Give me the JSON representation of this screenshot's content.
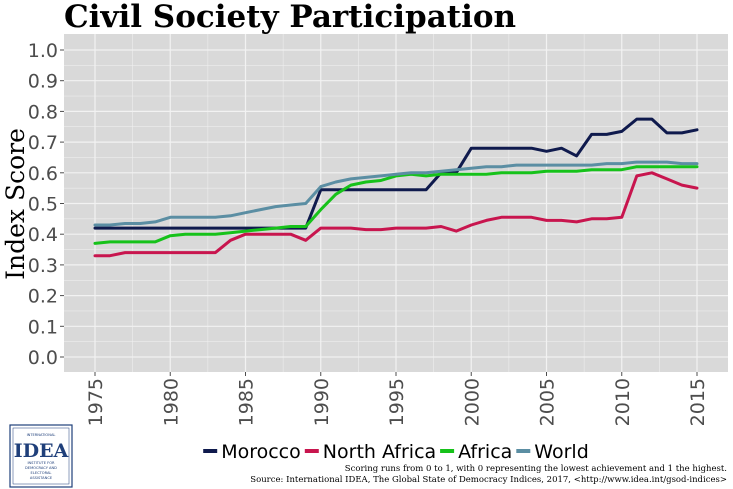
{
  "chart_data": {
    "type": "line",
    "title": "Civil Society Participation",
    "xlabel": "",
    "ylabel": "Index Score",
    "xlim": [
      1975,
      2015
    ],
    "ylim": [
      0.0,
      1.0
    ],
    "x_ticks": [
      "1975",
      "1980",
      "1985",
      "1990",
      "1995",
      "2000",
      "2005",
      "2010",
      "2015"
    ],
    "y_ticks": [
      "0.0",
      "0.1",
      "0.2",
      "0.3",
      "0.4",
      "0.5",
      "0.6",
      "0.7",
      "0.8",
      "0.9",
      "1.0"
    ],
    "grid": true,
    "legend_position": "bottom",
    "x": [
      1975,
      1976,
      1977,
      1978,
      1979,
      1980,
      1981,
      1982,
      1983,
      1984,
      1985,
      1986,
      1987,
      1988,
      1989,
      1990,
      1991,
      1992,
      1993,
      1994,
      1995,
      1996,
      1997,
      1998,
      1999,
      2000,
      2001,
      2002,
      2003,
      2004,
      2005,
      2006,
      2007,
      2008,
      2009,
      2010,
      2011,
      2012,
      2013,
      2014,
      2015
    ],
    "series": [
      {
        "name": "Morocco",
        "color": "#0f1a4d",
        "values": [
          0.42,
          0.42,
          0.42,
          0.42,
          0.42,
          0.42,
          0.42,
          0.42,
          0.42,
          0.42,
          0.42,
          0.42,
          0.42,
          0.42,
          0.42,
          0.545,
          0.545,
          0.545,
          0.545,
          0.545,
          0.545,
          0.545,
          0.545,
          0.6,
          0.6,
          0.68,
          0.68,
          0.68,
          0.68,
          0.68,
          0.67,
          0.68,
          0.655,
          0.725,
          0.725,
          0.735,
          0.775,
          0.775,
          0.73,
          0.73,
          0.74
        ]
      },
      {
        "name": "North Africa",
        "color": "#c8154e",
        "values": [
          0.33,
          0.33,
          0.34,
          0.34,
          0.34,
          0.34,
          0.34,
          0.34,
          0.34,
          0.38,
          0.4,
          0.4,
          0.4,
          0.4,
          0.38,
          0.42,
          0.42,
          0.42,
          0.415,
          0.415,
          0.42,
          0.42,
          0.42,
          0.425,
          0.41,
          0.43,
          0.445,
          0.455,
          0.455,
          0.455,
          0.445,
          0.445,
          0.44,
          0.45,
          0.45,
          0.455,
          0.59,
          0.6,
          0.58,
          0.56,
          0.55
        ]
      },
      {
        "name": "Africa",
        "color": "#16c21a",
        "values": [
          0.37,
          0.375,
          0.375,
          0.375,
          0.375,
          0.395,
          0.4,
          0.4,
          0.4,
          0.405,
          0.41,
          0.415,
          0.42,
          0.425,
          0.425,
          0.48,
          0.53,
          0.56,
          0.57,
          0.575,
          0.59,
          0.595,
          0.59,
          0.595,
          0.595,
          0.595,
          0.595,
          0.6,
          0.6,
          0.6,
          0.605,
          0.605,
          0.605,
          0.61,
          0.61,
          0.61,
          0.62,
          0.62,
          0.62,
          0.62,
          0.62
        ]
      },
      {
        "name": "World",
        "color": "#5b8ea3",
        "values": [
          0.43,
          0.43,
          0.435,
          0.435,
          0.44,
          0.455,
          0.455,
          0.455,
          0.455,
          0.46,
          0.47,
          0.48,
          0.49,
          0.495,
          0.5,
          0.555,
          0.57,
          0.58,
          0.585,
          0.59,
          0.595,
          0.6,
          0.6,
          0.605,
          0.61,
          0.615,
          0.62,
          0.62,
          0.625,
          0.625,
          0.625,
          0.625,
          0.625,
          0.625,
          0.63,
          0.63,
          0.635,
          0.635,
          0.635,
          0.63,
          0.63
        ]
      }
    ],
    "notes": [
      "Scoring runs from 0 to 1, with 0 representing the lowest achievement and 1 the highest.",
      "Source: International IDEA, The Global State of Democracy Indices, 2017, <http://www.idea.int/gsod-indices>"
    ]
  },
  "logo": {
    "top_text": "INTERNATIONAL",
    "main_text": "IDEA",
    "sub_text_1": "INSTITUTE FOR",
    "sub_text_2": "DEMOCRACY AND",
    "sub_text_3": "ELECTORAL",
    "sub_text_4": "ASSISTANCE",
    "colors": {
      "border": "#1f3f7a",
      "text": "#1f3f7a"
    }
  },
  "colors": {
    "panel_bg": "#d9d9d9",
    "grid": "#f2f2f2"
  }
}
